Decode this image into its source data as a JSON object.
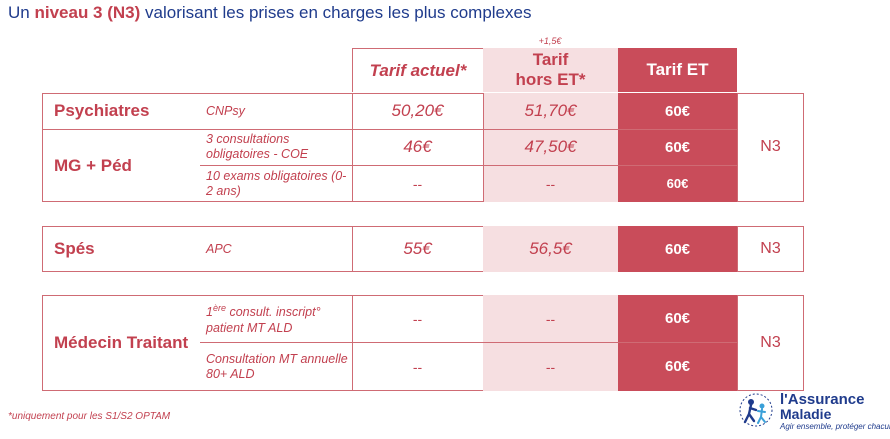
{
  "title": {
    "prefix": "Un ",
    "highlight": "niveau 3 (N3)",
    "suffix": " valorisant les prises en charges les plus complexes"
  },
  "headers": {
    "actuel": "Tarif actuel*",
    "hors_line1": "Tarif",
    "hors_line2": "hors ET*",
    "et": "Tarif ET",
    "increment": "+1,5€"
  },
  "groups": [
    {
      "label": "Psychiatres",
      "rows": [
        {
          "sub": "CNPsy",
          "actuel": "50,20€",
          "hors": "51,70€",
          "et": "60€"
        }
      ]
    },
    {
      "label": "MG + Péd",
      "rows": [
        {
          "sub": "3 consultations obligatoires - COE",
          "actuel": "46€",
          "hors": "47,50€",
          "et": "60€"
        },
        {
          "sub": "10 exams obligatoires (0-2 ans)",
          "actuel": "--",
          "hors": "--",
          "et": "60€"
        }
      ]
    },
    {
      "label": "Spés",
      "rows": [
        {
          "sub": "APC",
          "actuel": "55€",
          "hors": "56,5€",
          "et": "60€"
        }
      ]
    },
    {
      "label": "Médecin Traitant",
      "rows": [
        {
          "sub_sup_prefix": "1",
          "sub_sup": "ère",
          "sub": " consult. inscript° patient MT ALD",
          "actuel": "--",
          "hors": "--",
          "et": "60€"
        },
        {
          "sub": "Consultation MT annuelle 80+ ALD",
          "actuel": "--",
          "hors": "--",
          "et": "60€"
        }
      ]
    }
  ],
  "n3_label": "N3",
  "footnote": "*uniquement pour les S1/S2 OPTAM",
  "logo": {
    "line1": "l'Assurance",
    "line2": "Maladie",
    "tagline": "Agir ensemble, protéger chacun"
  },
  "colors": {
    "accent": "#c2404f",
    "et_fill": "#c94c5a",
    "hors_fill": "#f6dfe1",
    "title_blue": "#1f3b8c"
  }
}
